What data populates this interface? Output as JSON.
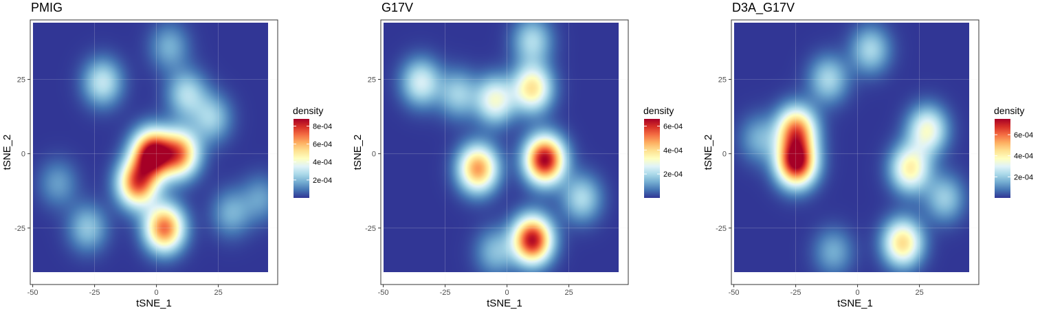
{
  "chart_data": [
    {
      "type": "heatmap",
      "title": "PMIG",
      "xlabel": "tSNE_1",
      "ylabel": "tSNE_2",
      "xlim": [
        -51,
        49
      ],
      "ylim": [
        -44,
        45
      ],
      "xticks": [
        -50,
        -25,
        0,
        25
      ],
      "yticks": [
        -25,
        0,
        25
      ],
      "grid": true,
      "legend": {
        "title": "density",
        "position": "right",
        "max": 0.00088,
        "ticks": [
          0.0002,
          0.0004,
          0.0006,
          0.0008
        ],
        "labels": [
          "2e-04",
          "4e-04",
          "6e-04",
          "8e-04"
        ]
      },
      "density_hotspots": [
        {
          "x": -2,
          "y": 0,
          "peak": 0.00088
        },
        {
          "x": -8,
          "y": -10,
          "peak": 0.0007
        },
        {
          "x": 9,
          "y": 0,
          "peak": 0.00065
        },
        {
          "x": 3,
          "y": -25,
          "peak": 0.0007
        },
        {
          "x": -22,
          "y": 24,
          "peak": 0.0003
        },
        {
          "x": 12,
          "y": 20,
          "peak": 0.00027
        },
        {
          "x": 22,
          "y": 12,
          "peak": 0.00024
        },
        {
          "x": -28,
          "y": -25,
          "peak": 0.00022
        },
        {
          "x": 5,
          "y": 36,
          "peak": 0.00018
        },
        {
          "x": 30,
          "y": -20,
          "peak": 0.00018
        },
        {
          "x": -40,
          "y": -10,
          "peak": 0.00015
        },
        {
          "x": 42,
          "y": -15,
          "peak": 0.00015
        }
      ]
    },
    {
      "type": "heatmap",
      "title": "G17V",
      "xlabel": "tSNE_1",
      "ylabel": "tSNE_2",
      "xlim": [
        -51,
        49
      ],
      "ylim": [
        -44,
        45
      ],
      "xticks": [
        -50,
        -25,
        0,
        25
      ],
      "yticks": [
        -25,
        0,
        25
      ],
      "grid": true,
      "legend": {
        "title": "density",
        "position": "right",
        "max": 0.00066,
        "ticks": [
          0.0002,
          0.0004,
          0.0006
        ],
        "labels": [
          "2e-04",
          "4e-04",
          "6e-04"
        ]
      },
      "density_hotspots": [
        {
          "x": 15,
          "y": -2,
          "peak": 0.00066
        },
        {
          "x": 10,
          "y": -29,
          "peak": 0.00064
        },
        {
          "x": -12,
          "y": -5,
          "peak": 0.00048
        },
        {
          "x": 10,
          "y": 22,
          "peak": 0.00038
        },
        {
          "x": -5,
          "y": 18,
          "peak": 0.0003
        },
        {
          "x": -35,
          "y": 24,
          "peak": 0.00025
        },
        {
          "x": 10,
          "y": 38,
          "peak": 0.0002
        },
        {
          "x": 30,
          "y": -15,
          "peak": 0.0002
        },
        {
          "x": -20,
          "y": 20,
          "peak": 0.00018
        },
        {
          "x": -5,
          "y": -33,
          "peak": 0.00015
        }
      ]
    },
    {
      "type": "heatmap",
      "title": "D3A_G17V",
      "xlabel": "tSNE_1",
      "ylabel": "tSNE_2",
      "xlim": [
        -51,
        49
      ],
      "ylim": [
        -44,
        45
      ],
      "xticks": [
        -50,
        -25,
        0,
        25
      ],
      "yticks": [
        -25,
        0,
        25
      ],
      "grid": true,
      "legend": {
        "title": "density",
        "position": "right",
        "max": 0.00075,
        "ticks": [
          0.0002,
          0.0004,
          0.0006
        ],
        "labels": [
          "2e-04",
          "4e-04",
          "6e-04"
        ]
      },
      "density_hotspots": [
        {
          "x": -25,
          "y": -3,
          "peak": 0.00075
        },
        {
          "x": -25,
          "y": 8,
          "peak": 0.00055
        },
        {
          "x": 18,
          "y": -30,
          "peak": 0.00045
        },
        {
          "x": 21,
          "y": -5,
          "peak": 0.0004
        },
        {
          "x": 28,
          "y": 8,
          "peak": 0.00035
        },
        {
          "x": -12,
          "y": 25,
          "peak": 0.00022
        },
        {
          "x": 5,
          "y": 35,
          "peak": 0.00022
        },
        {
          "x": 35,
          "y": -15,
          "peak": 0.0002
        },
        {
          "x": -40,
          "y": 5,
          "peak": 0.00015
        },
        {
          "x": -10,
          "y": -33,
          "peak": 0.00015
        }
      ]
    }
  ]
}
